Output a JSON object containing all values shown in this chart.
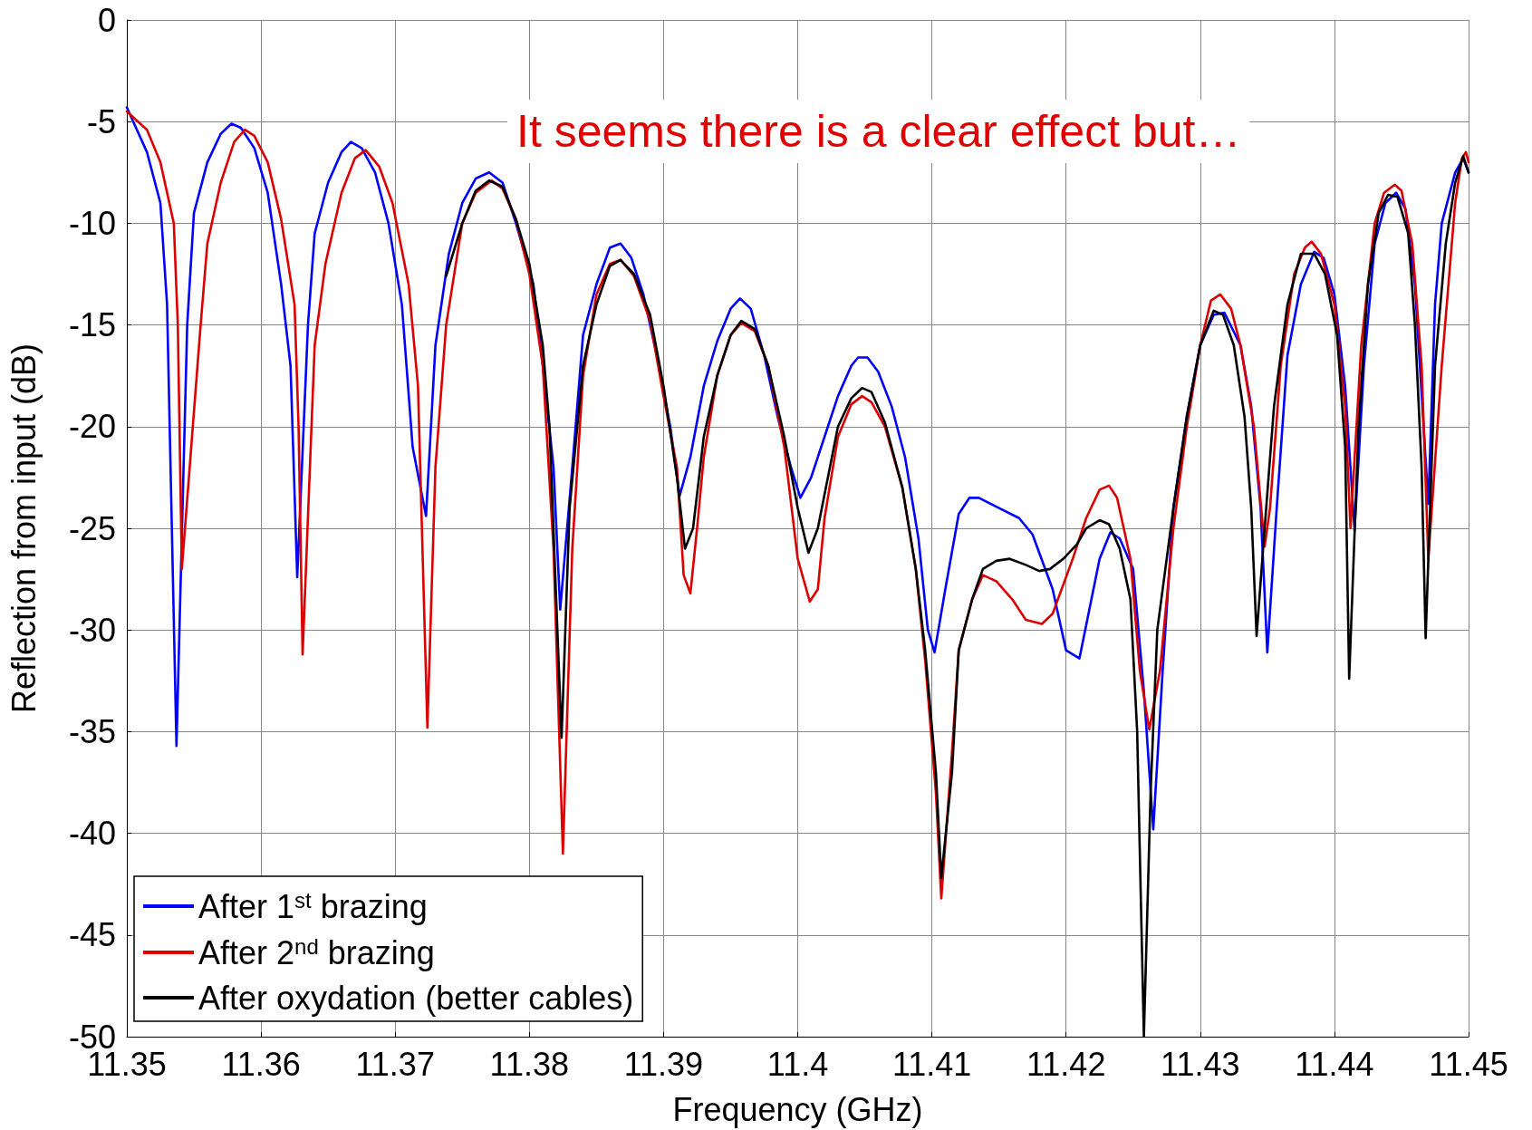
{
  "chart_data": {
    "type": "line",
    "xlabel": "Frequency (GHz)",
    "ylabel": "Reflection from input (dB)",
    "annotations": [
      "It seems there is a clear effect but…"
    ],
    "xlim": [
      11.35,
      11.45
    ],
    "xticks": [
      11.35,
      11.36,
      11.37,
      11.38,
      11.39,
      11.4,
      11.41,
      11.42,
      11.43,
      11.44,
      11.45
    ],
    "ylim": [
      -50,
      0
    ],
    "yticks": [
      -50,
      -45,
      -40,
      -35,
      -30,
      -25,
      -20,
      -15,
      -10,
      -5,
      0
    ],
    "grid": true,
    "legend": "bottom left",
    "marker": "none",
    "line_style": "solid",
    "series": [
      {
        "name": "After 1$^{st}$ brazing",
        "color": "#0000ff",
        "x": [
          11.35,
          11.3515,
          11.3525,
          11.353,
          11.3537,
          11.3545,
          11.355,
          11.356,
          11.357,
          11.3578,
          11.3585,
          11.3595,
          11.3605,
          11.3615,
          11.3622,
          11.3627,
          11.3635,
          11.364,
          11.365,
          11.366,
          11.3667,
          11.3675,
          11.3685,
          11.3695,
          11.3705,
          11.3713,
          11.3723,
          11.373,
          11.374,
          11.375,
          11.376,
          11.377,
          11.378,
          11.379,
          11.3803,
          11.381,
          11.3818,
          11.3823,
          11.3832,
          11.384,
          11.385,
          11.386,
          11.3868,
          11.3876,
          11.3885,
          11.3895,
          11.3905,
          11.3912,
          11.392,
          11.393,
          11.394,
          11.395,
          11.3957,
          11.3965,
          11.3975,
          11.3985,
          11.3995,
          11.4002,
          11.401,
          11.402,
          11.403,
          11.404,
          11.4045,
          11.4052,
          11.406,
          11.407,
          11.408,
          11.409,
          11.4097,
          11.4102,
          11.411,
          11.412,
          11.4128,
          11.4135,
          11.415,
          11.4165,
          11.4175,
          11.419,
          11.42,
          11.421,
          11.4225,
          11.4233,
          11.424,
          11.425,
          11.4258,
          11.4265,
          11.4272,
          11.428,
          11.429,
          11.43,
          11.431,
          11.4318,
          11.433,
          11.4338,
          11.4345,
          11.435,
          11.4357,
          11.4365,
          11.4375,
          11.4385,
          11.4392,
          11.44,
          11.4408,
          11.4415,
          11.4422,
          11.443,
          11.4438,
          11.4446,
          11.4453,
          11.446,
          11.447,
          11.4475,
          11.448,
          11.449,
          11.4496,
          11.45
        ],
        "values": [
          -4.3,
          -6.5,
          -9,
          -14,
          -35.7,
          -15,
          -9.5,
          -7,
          -5.6,
          -5.1,
          -5.3,
          -6.3,
          -8.5,
          -13,
          -17,
          -27.4,
          -15,
          -10.5,
          -8,
          -6.5,
          -6,
          -6.3,
          -7.5,
          -10,
          -14,
          -21,
          -24.4,
          -16,
          -11.5,
          -9,
          -7.8,
          -7.5,
          -8,
          -10,
          -13,
          -17,
          -22,
          -29,
          -22,
          -15.5,
          -13,
          -11.2,
          -11,
          -11.7,
          -13.5,
          -16.5,
          -20,
          -23.4,
          -21.5,
          -18,
          -15.8,
          -14.2,
          -13.7,
          -14.2,
          -16.5,
          -19.5,
          -22,
          -23.5,
          -22.5,
          -20.5,
          -18.5,
          -17,
          -16.6,
          -16.6,
          -17.3,
          -19,
          -21.5,
          -25.5,
          -30,
          -31.1,
          -28,
          -24.3,
          -23.5,
          -23.5,
          -24,
          -24.5,
          -25.3,
          -28,
          -31,
          -31.4,
          -26.5,
          -25.2,
          -25.5,
          -27,
          -33,
          -39.8,
          -32,
          -24,
          -19.5,
          -16,
          -14.5,
          -14.4,
          -16,
          -19,
          -24,
          -31.1,
          -24,
          -16.5,
          -13,
          -11.4,
          -11.7,
          -13.5,
          -18,
          -25.1,
          -17,
          -11,
          -9,
          -8.5,
          -9.3,
          -13,
          -23.8,
          -14,
          -10,
          -7.5,
          -6.8,
          -7.5
        ]
      },
      {
        "name": "After 2$^{nd}$ brazing",
        "color": "#dd0000",
        "x": [
          11.35,
          11.3515,
          11.3525,
          11.3535,
          11.3538,
          11.3541,
          11.3555,
          11.356,
          11.357,
          11.358,
          11.3588,
          11.3595,
          11.3605,
          11.3615,
          11.3625,
          11.3628,
          11.3631,
          11.364,
          11.3648,
          11.366,
          11.367,
          11.3678,
          11.3688,
          11.3698,
          11.371,
          11.3717,
          11.3724,
          11.373,
          11.3738,
          11.375,
          11.376,
          11.3772,
          11.378,
          11.379,
          11.38,
          11.381,
          11.3818,
          11.3825,
          11.3832,
          11.384,
          11.385,
          11.386,
          11.3868,
          11.3878,
          11.389,
          11.39,
          11.391,
          11.3915,
          11.392,
          11.3925,
          11.393,
          11.394,
          11.395,
          11.3958,
          11.3968,
          11.3978,
          11.399,
          11.4,
          11.4009,
          11.4015,
          11.402,
          11.403,
          11.404,
          11.4048,
          11.4055,
          11.4065,
          11.4078,
          11.4088,
          11.4095,
          11.4103,
          11.4107,
          11.4115,
          11.412,
          11.413,
          11.4138,
          11.4148,
          11.416,
          11.417,
          11.4182,
          11.419,
          11.4205,
          11.4215,
          11.4225,
          11.4232,
          11.4238,
          11.4248,
          11.4255,
          11.4262,
          11.427,
          11.428,
          11.429,
          11.43,
          11.4308,
          11.4315,
          11.4323,
          11.433,
          11.434,
          11.4348,
          11.4352,
          11.436,
          11.437,
          11.4378,
          11.4383,
          11.439,
          11.44,
          11.4408,
          11.4412,
          11.442,
          11.443,
          11.4437,
          11.4445,
          11.445,
          11.4458,
          11.4465,
          11.447,
          11.448,
          11.449,
          11.4495,
          11.4498,
          11.45
        ],
        "values": [
          -4.5,
          -5.4,
          -7,
          -10,
          -15,
          -27,
          -15,
          -11,
          -8,
          -6,
          -5.4,
          -5.7,
          -7,
          -9.8,
          -14,
          -20,
          -31.2,
          -16,
          -12,
          -8.5,
          -6.8,
          -6.4,
          -7.2,
          -9,
          -13,
          -18,
          -34.8,
          -22,
          -15,
          -10,
          -8.5,
          -7.9,
          -8.3,
          -9.8,
          -12.5,
          -17,
          -26,
          -41,
          -26,
          -17.5,
          -13.5,
          -12,
          -11.8,
          -12.6,
          -14.8,
          -18.5,
          -22,
          -27.3,
          -28.2,
          -25,
          -21.5,
          -17.5,
          -15.5,
          -14.9,
          -15.3,
          -17,
          -21,
          -26.5,
          -28.6,
          -28,
          -24.5,
          -20.5,
          -18.9,
          -18.5,
          -18.8,
          -20,
          -23,
          -27,
          -31.5,
          -38,
          -43.2,
          -36,
          -31,
          -28.5,
          -27.3,
          -27.6,
          -28.5,
          -29.5,
          -29.7,
          -29.2,
          -26.5,
          -24.5,
          -23.1,
          -22.9,
          -23.5,
          -26.5,
          -32,
          -34.9,
          -32,
          -25,
          -20,
          -16,
          -13.8,
          -13.5,
          -14.2,
          -16,
          -20,
          -25.9,
          -24,
          -17,
          -12.5,
          -11.2,
          -10.9,
          -11.5,
          -14,
          -19,
          -25,
          -16,
          -10,
          -8.5,
          -8.1,
          -8.4,
          -11,
          -17,
          -26.5,
          -17,
          -9,
          -6.8,
          -6.5,
          -7
        ]
      },
      {
        "name": "After oxydation (better cables)",
        "color": "#000000",
        "x": [
          11.3738,
          11.375,
          11.376,
          11.377,
          11.378,
          11.379,
          11.38,
          11.381,
          11.3815,
          11.3824,
          11.383,
          11.384,
          11.385,
          11.386,
          11.3868,
          11.3878,
          11.389,
          11.39,
          11.391,
          11.3916,
          11.3922,
          11.393,
          11.394,
          11.395,
          11.3958,
          11.3968,
          11.3978,
          11.399,
          11.4,
          11.4008,
          11.4015,
          11.403,
          11.404,
          11.4048,
          11.4055,
          11.4065,
          11.4078,
          11.4088,
          11.4095,
          11.4103,
          11.4107,
          11.4115,
          11.412,
          11.413,
          11.4138,
          11.4148,
          11.4158,
          11.417,
          11.418,
          11.4188,
          11.4198,
          11.4208,
          11.4215,
          11.4225,
          11.4232,
          11.424,
          11.4248,
          11.4253,
          11.4258,
          11.4263,
          11.4268,
          11.428,
          11.429,
          11.43,
          11.431,
          11.4317,
          11.4325,
          11.4333,
          11.4338,
          11.4342,
          11.4348,
          11.4355,
          11.4365,
          11.4375,
          11.4385,
          11.4393,
          11.4402,
          11.4408,
          11.4411,
          11.4418,
          11.4425,
          11.4433,
          11.444,
          11.4447,
          11.4455,
          11.446,
          11.4465,
          11.4468,
          11.4475,
          11.4483,
          11.449,
          11.4496,
          11.45
        ],
        "values": [
          -12.6,
          -10,
          -8.4,
          -7.9,
          -8.2,
          -9.8,
          -12,
          -16,
          -20,
          -35.3,
          -24,
          -17,
          -14,
          -12.1,
          -11.8,
          -12.5,
          -14.5,
          -18,
          -22.5,
          -26,
          -25,
          -20.5,
          -17.5,
          -15.5,
          -14.8,
          -15.2,
          -17,
          -20.5,
          -24,
          -26.2,
          -25,
          -20,
          -18.6,
          -18.1,
          -18.3,
          -19.8,
          -23,
          -27,
          -31,
          -37,
          -42.2,
          -37,
          -31,
          -28.5,
          -27,
          -26.6,
          -26.5,
          -26.8,
          -27.1,
          -27,
          -26.5,
          -25.8,
          -25,
          -24.6,
          -24.8,
          -26,
          -28.5,
          -35,
          -50,
          -38,
          -30,
          -24,
          -19.5,
          -16,
          -14.3,
          -14.5,
          -16,
          -19.5,
          -24,
          -30.3,
          -25,
          -19,
          -14,
          -11.5,
          -11.5,
          -12.5,
          -15.5,
          -21,
          -32.4,
          -20,
          -13,
          -9.5,
          -8.6,
          -8.7,
          -10.5,
          -15,
          -22,
          -30.4,
          -17,
          -11,
          -8,
          -6.7,
          -7.5
        ]
      }
    ]
  }
}
